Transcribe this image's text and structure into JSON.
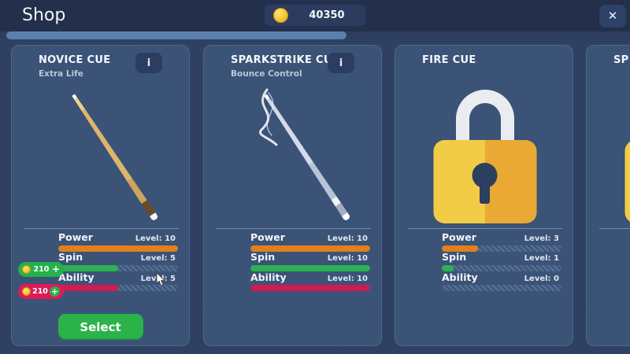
{
  "header": {
    "title": "Shop",
    "coins": "40350"
  },
  "icons": {
    "close": "✕",
    "info": "i",
    "plus": "+"
  },
  "palette": {
    "page_bg": "#2f4162",
    "header_bg": "#242f4c",
    "card_bg": "#3b5377",
    "scroll_thumb": "#5b80af",
    "gold": "#f6c732",
    "power_orange": "#e1801d",
    "spin_green": "#2bb352",
    "ability_crimson": "#d01a52",
    "select_green": "#2bb34a",
    "upgrade_green": "#25b14b",
    "upgrade_red": "#df1a58"
  },
  "cards": [
    {
      "title": "NOVICE CUE",
      "subtitle": "Extra Life",
      "locked": false,
      "stats": [
        {
          "label": "Power",
          "level_text": "Level: 10",
          "value": 10,
          "max": 10,
          "color": "#e1801d"
        },
        {
          "label": "Spin",
          "level_text": "Level: 5",
          "value": 5,
          "max": 10,
          "color": "#2bb352"
        },
        {
          "label": "Ability",
          "level_text": "Level: 5",
          "value": 5,
          "max": 10,
          "color": "#d01a52"
        }
      ],
      "upgrades": [
        {
          "cost": "210"
        },
        {
          "cost": "210"
        }
      ],
      "select_label": "Select"
    },
    {
      "title": "SPARKSTRIKE CUE",
      "subtitle": "Bounce Control",
      "locked": false,
      "stats": [
        {
          "label": "Power",
          "level_text": "Level: 10",
          "value": 10,
          "max": 10,
          "color": "#e1801d"
        },
        {
          "label": "Spin",
          "level_text": "Level: 10",
          "value": 10,
          "max": 10,
          "color": "#2bb352"
        },
        {
          "label": "Ability",
          "level_text": "Level: 10",
          "value": 10,
          "max": 10,
          "color": "#d01a52"
        }
      ]
    },
    {
      "title": "FIRE CUE",
      "locked": true,
      "stats": [
        {
          "label": "Power",
          "level_text": "Level: 3",
          "value": 3,
          "max": 10,
          "color": "#e1801d"
        },
        {
          "label": "Spin",
          "level_text": "Level: 1",
          "value": 1,
          "max": 10,
          "color": "#2bb352"
        },
        {
          "label": "Ability",
          "level_text": "Level: 0",
          "value": 0,
          "max": 10,
          "color": "#d01a52"
        }
      ]
    },
    {
      "title": "SP",
      "locked": true,
      "partial": true
    }
  ]
}
